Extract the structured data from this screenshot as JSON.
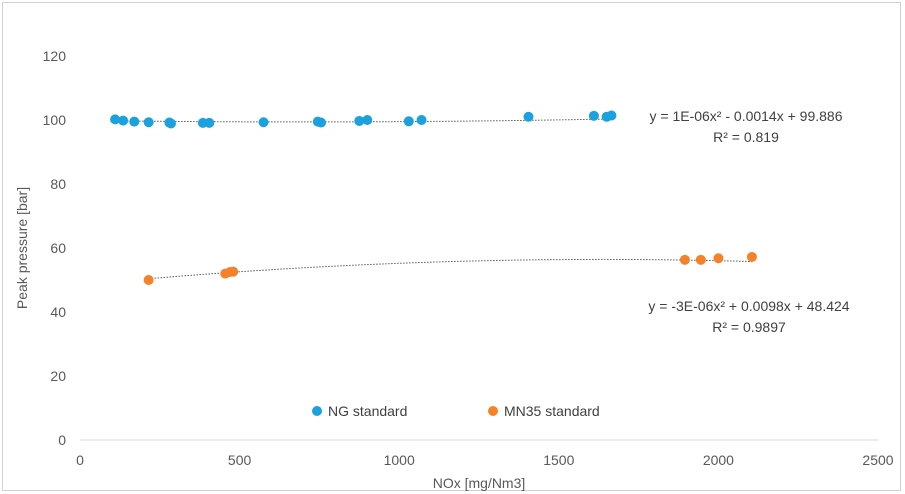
{
  "chart_data": {
    "type": "scatter",
    "title": "",
    "xlabel": "NOx [mg/Nm3]",
    "ylabel": "Peak pressure [bar]",
    "xlim": [
      0,
      2500
    ],
    "ylim": [
      0,
      120
    ],
    "x_ticks": [
      0,
      500,
      1000,
      1500,
      2000,
      2500
    ],
    "y_ticks": [
      0,
      20,
      40,
      60,
      80,
      100,
      120
    ],
    "grid": false,
    "legend": "bottom-center",
    "series": [
      {
        "name": "NG standard",
        "color": "#1ba1dd",
        "x": [
          110,
          135,
          170,
          215,
          280,
          285,
          385,
          405,
          575,
          745,
          755,
          875,
          900,
          1030,
          1070,
          1405,
          1610,
          1650,
          1665
        ],
        "y": [
          100.2,
          99.8,
          99.5,
          99.3,
          99.2,
          98.9,
          99.1,
          99.1,
          99.3,
          99.5,
          99.2,
          99.7,
          100.0,
          99.6,
          100.0,
          101.0,
          101.3,
          101.0,
          101.4
        ],
        "trendline": {
          "type": "polynomial",
          "coefficients": [
            1e-06,
            -0.0014,
            99.886
          ],
          "x_range": [
            110,
            1665
          ],
          "equation": "y = 1E-06x² - 0.0014x + 99.886",
          "r2": "R² = 0.819"
        }
      },
      {
        "name": "MN35 standard",
        "color": "#f58229",
        "x": [
          215,
          455,
          470,
          480,
          1895,
          1945,
          2000,
          2105
        ],
        "y": [
          50.0,
          52.0,
          52.5,
          52.6,
          56.3,
          56.3,
          56.8,
          57.2
        ],
        "trendline": {
          "type": "polynomial",
          "coefficients": [
            -3e-06,
            0.0098,
            48.424
          ],
          "x_range": [
            215,
            2105
          ],
          "equation": "y = -3E-06x² + 0.0098x + 48.424",
          "r2": "R² = 0.9897"
        }
      }
    ]
  },
  "colors": {
    "axis": "#d9d9d9",
    "text": "#595959",
    "trendline": "#595959"
  }
}
